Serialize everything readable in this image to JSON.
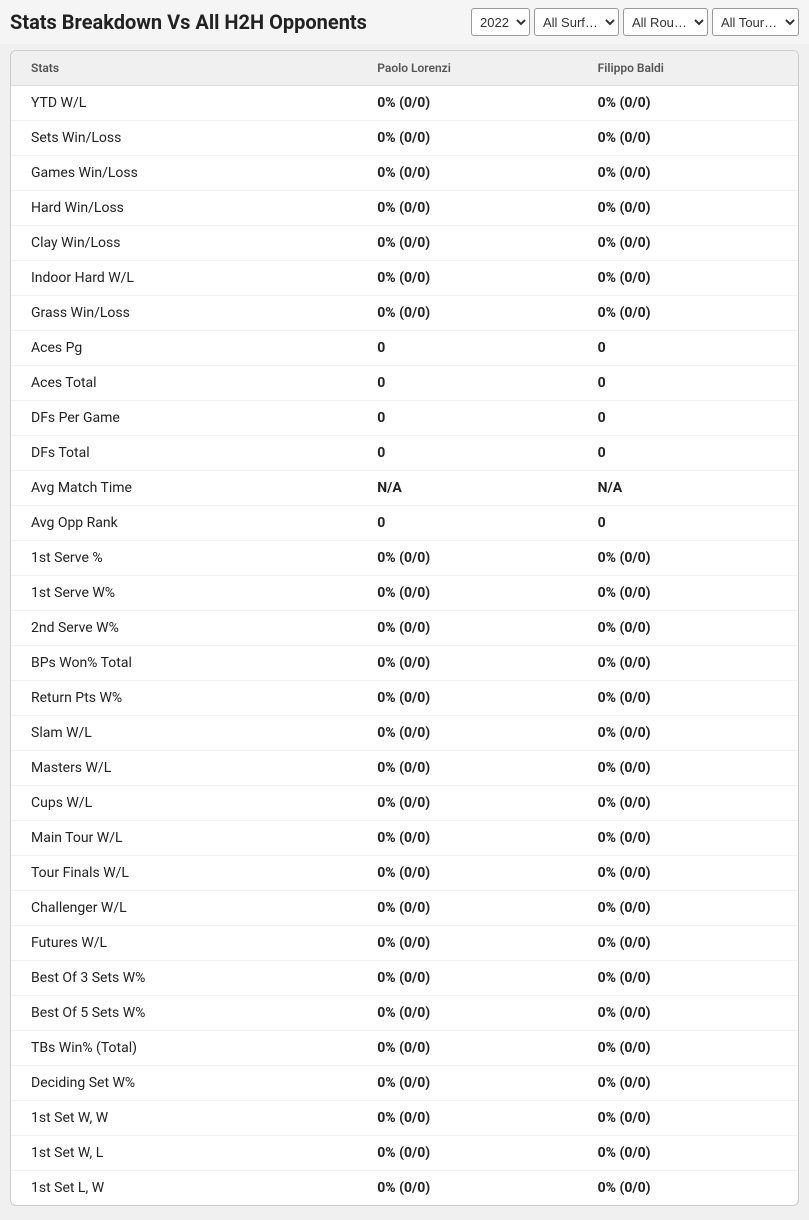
{
  "header": {
    "title": "Stats Breakdown Vs All H2H Opponents"
  },
  "filters": {
    "year": {
      "selected": "2022",
      "options": [
        "2022"
      ]
    },
    "surface": {
      "selected": "All Surf…",
      "options": [
        "All Surf…"
      ]
    },
    "round": {
      "selected": "All Rou…",
      "options": [
        "All Rou…"
      ]
    },
    "tour": {
      "selected": "All Tour…",
      "options": [
        "All Tour…"
      ]
    }
  },
  "table": {
    "columns": {
      "stats": "Stats",
      "player1": "Paolo Lorenzi",
      "player2": "Filippo Baldi"
    },
    "rows": [
      {
        "stat": "YTD W/L",
        "p1": "0% (0/0)",
        "p2": "0% (0/0)"
      },
      {
        "stat": "Sets Win/Loss",
        "p1": "0% (0/0)",
        "p2": "0% (0/0)"
      },
      {
        "stat": "Games Win/Loss",
        "p1": "0% (0/0)",
        "p2": "0% (0/0)"
      },
      {
        "stat": "Hard Win/Loss",
        "p1": "0% (0/0)",
        "p2": "0% (0/0)"
      },
      {
        "stat": "Clay Win/Loss",
        "p1": "0% (0/0)",
        "p2": "0% (0/0)"
      },
      {
        "stat": "Indoor Hard W/L",
        "p1": "0% (0/0)",
        "p2": "0% (0/0)"
      },
      {
        "stat": "Grass Win/Loss",
        "p1": "0% (0/0)",
        "p2": "0% (0/0)"
      },
      {
        "stat": "Aces Pg",
        "p1": "0",
        "p2": "0"
      },
      {
        "stat": "Aces Total",
        "p1": "0",
        "p2": "0"
      },
      {
        "stat": "DFs Per Game",
        "p1": "0",
        "p2": "0"
      },
      {
        "stat": "DFs Total",
        "p1": "0",
        "p2": "0"
      },
      {
        "stat": "Avg Match Time",
        "p1": "N/A",
        "p2": "N/A"
      },
      {
        "stat": "Avg Opp Rank",
        "p1": "0",
        "p2": "0"
      },
      {
        "stat": "1st Serve %",
        "p1": "0% (0/0)",
        "p2": "0% (0/0)"
      },
      {
        "stat": "1st Serve W%",
        "p1": "0% (0/0)",
        "p2": "0% (0/0)"
      },
      {
        "stat": "2nd Serve W%",
        "p1": "0% (0/0)",
        "p2": "0% (0/0)"
      },
      {
        "stat": "BPs Won% Total",
        "p1": "0% (0/0)",
        "p2": "0% (0/0)"
      },
      {
        "stat": "Return Pts W%",
        "p1": "0% (0/0)",
        "p2": "0% (0/0)"
      },
      {
        "stat": "Slam W/L",
        "p1": "0% (0/0)",
        "p2": "0% (0/0)"
      },
      {
        "stat": "Masters W/L",
        "p1": "0% (0/0)",
        "p2": "0% (0/0)"
      },
      {
        "stat": "Cups W/L",
        "p1": "0% (0/0)",
        "p2": "0% (0/0)"
      },
      {
        "stat": "Main Tour W/L",
        "p1": "0% (0/0)",
        "p2": "0% (0/0)"
      },
      {
        "stat": "Tour Finals W/L",
        "p1": "0% (0/0)",
        "p2": "0% (0/0)"
      },
      {
        "stat": "Challenger W/L",
        "p1": "0% (0/0)",
        "p2": "0% (0/0)"
      },
      {
        "stat": "Futures W/L",
        "p1": "0% (0/0)",
        "p2": "0% (0/0)"
      },
      {
        "stat": "Best Of 3 Sets W%",
        "p1": "0% (0/0)",
        "p2": "0% (0/0)"
      },
      {
        "stat": "Best Of 5 Sets W%",
        "p1": "0% (0/0)",
        "p2": "0% (0/0)"
      },
      {
        "stat": "TBs Win% (Total)",
        "p1": "0% (0/0)",
        "p2": "0% (0/0)"
      },
      {
        "stat": "Deciding Set W%",
        "p1": "0% (0/0)",
        "p2": "0% (0/0)"
      },
      {
        "stat": "1st Set W, W",
        "p1": "0% (0/0)",
        "p2": "0% (0/0)"
      },
      {
        "stat": "1st Set W, L",
        "p1": "0% (0/0)",
        "p2": "0% (0/0)"
      },
      {
        "stat": "1st Set L, W",
        "p1": "0% (0/0)",
        "p2": "0% (0/0)"
      }
    ]
  },
  "styling": {
    "background_color": "#f0f0f0",
    "container_border_color": "#cccccc",
    "header_bg": "#f0f0f0",
    "row_border_color": "#f2f2f2",
    "text_color": "#222222",
    "header_text_color": "#555555",
    "title_font_size": 20,
    "cell_font_size": 14,
    "header_font_size": 12
  }
}
